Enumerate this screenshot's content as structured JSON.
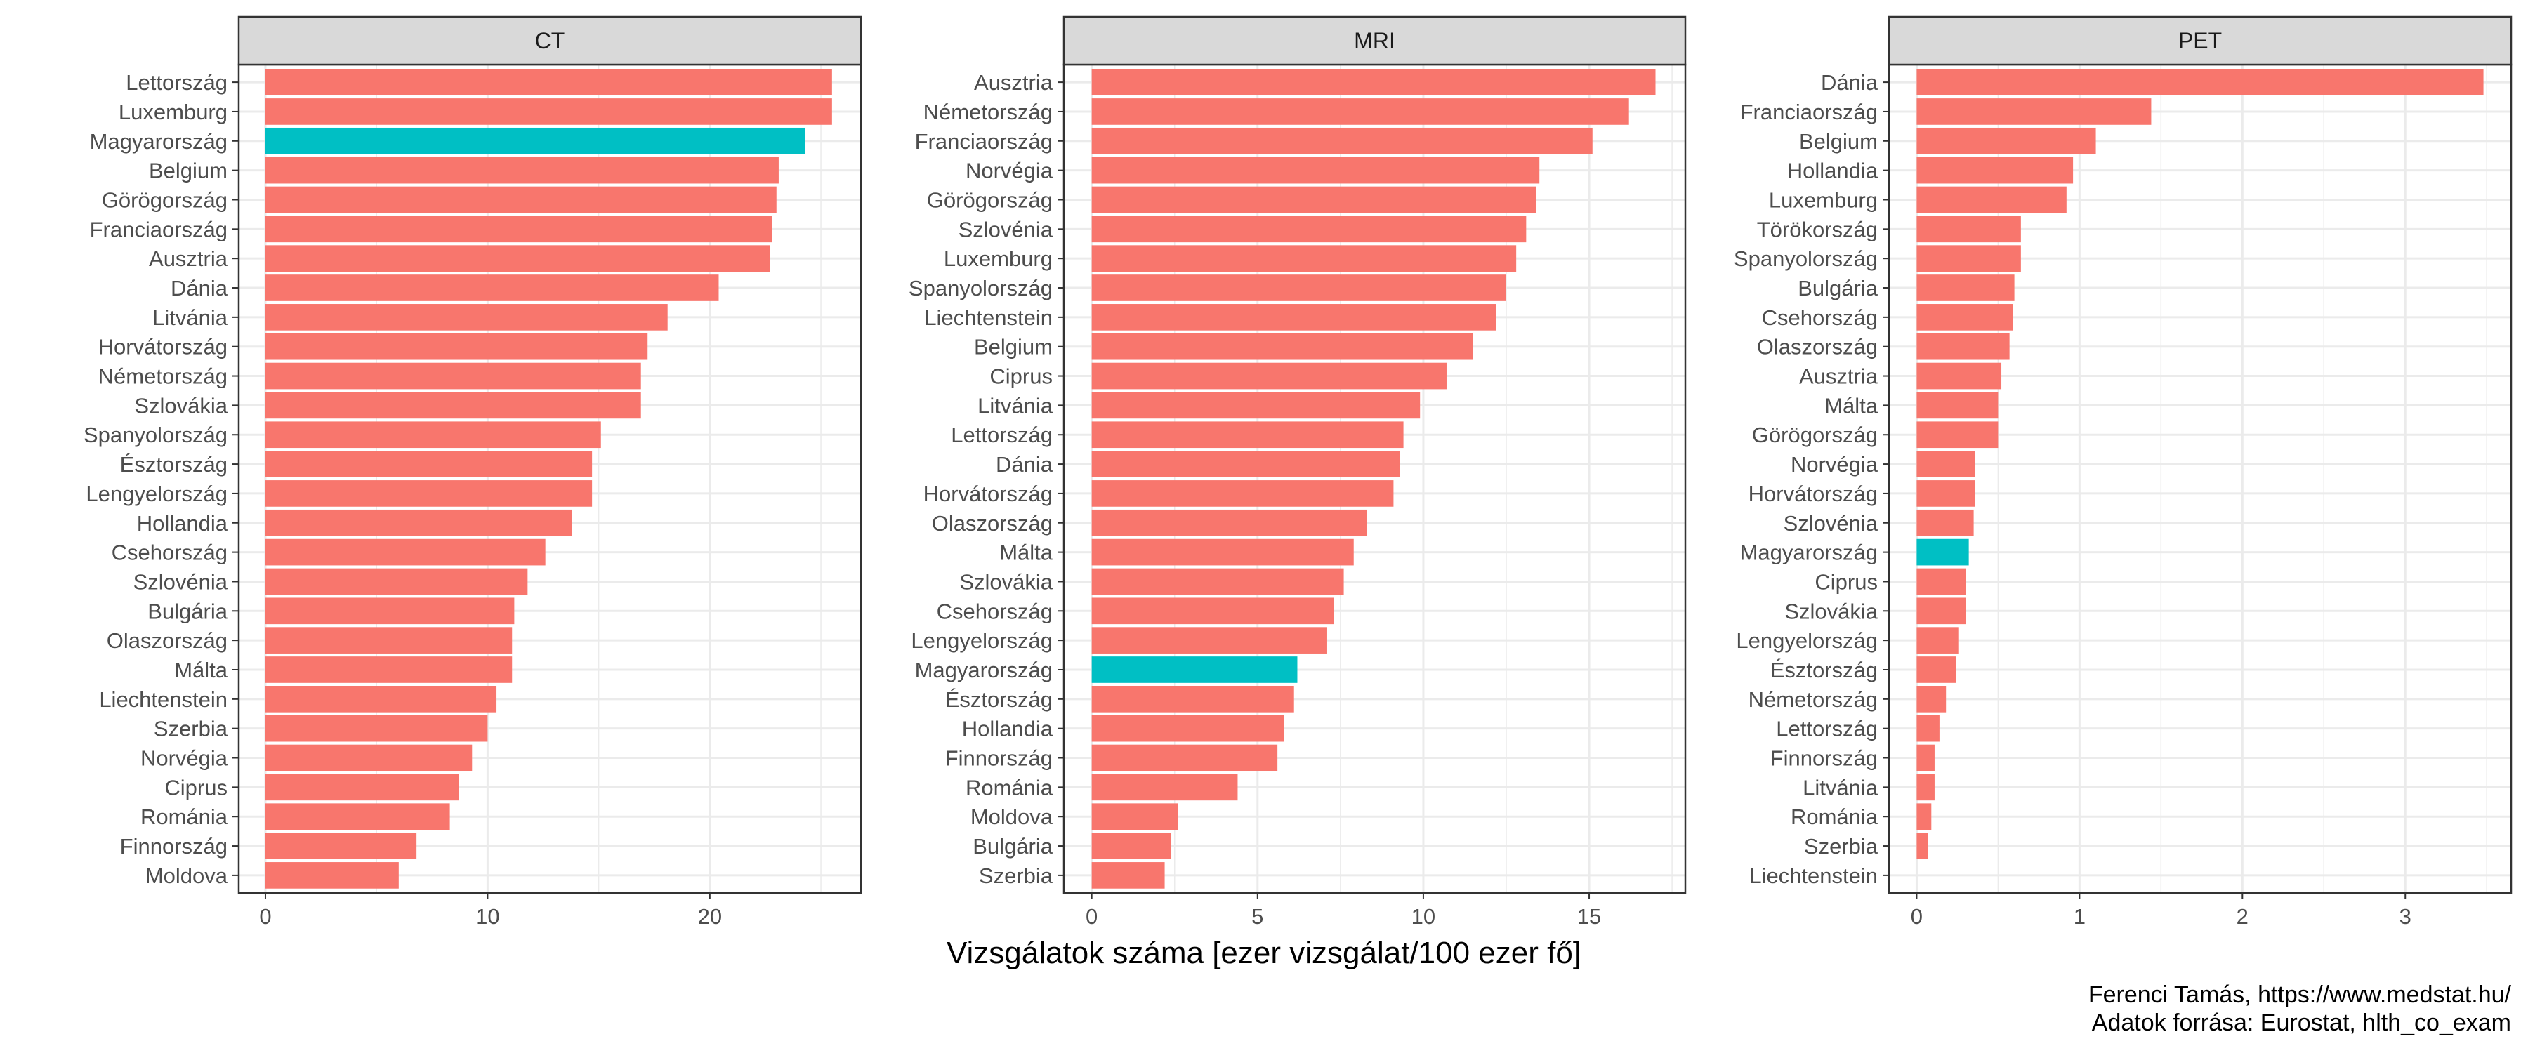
{
  "colors": {
    "bar_default": "#F8766D",
    "bar_highlight": "#00BFC4",
    "strip_fill": "#D9D9D9",
    "panel_border": "#333333",
    "grid": "#EBEBEB",
    "tick_text": "#4D4D4D"
  },
  "chart_data": {
    "type": "bar",
    "orientation": "horizontal",
    "xlabel": "Vizsgálatok száma [ezer vizsgálat/100 ezer fő]",
    "highlight": "Magyarország",
    "grid": true,
    "panels": [
      {
        "title": "CT",
        "xlim": [
          -1.2,
          26.8
        ],
        "ticks": [
          0,
          10,
          20
        ],
        "categories": [
          "Lettország",
          "Luxemburg",
          "Magyarország",
          "Belgium",
          "Görögország",
          "Franciaország",
          "Ausztria",
          "Dánia",
          "Litvánia",
          "Horvátország",
          "Németország",
          "Szlovákia",
          "Spanyolország",
          "Észtország",
          "Lengyelország",
          "Hollandia",
          "Csehország",
          "Szlovénia",
          "Bulgária",
          "Olaszország",
          "Málta",
          "Liechtenstein",
          "Szerbia",
          "Norvégia",
          "Ciprus",
          "Románia",
          "Finnország",
          "Moldova"
        ],
        "values": [
          25.5,
          25.5,
          24.3,
          23.1,
          23.0,
          22.8,
          22.7,
          20.4,
          18.1,
          17.2,
          16.9,
          16.9,
          15.1,
          14.7,
          14.7,
          13.8,
          12.6,
          11.8,
          11.2,
          11.1,
          11.1,
          10.4,
          10.0,
          9.3,
          8.7,
          8.3,
          6.8,
          6.0
        ]
      },
      {
        "title": "MRI",
        "xlim": [
          -0.84,
          17.9
        ],
        "ticks": [
          0,
          5,
          10,
          15
        ],
        "categories": [
          "Ausztria",
          "Németország",
          "Franciaország",
          "Norvégia",
          "Görögország",
          "Szlovénia",
          "Luxemburg",
          "Spanyolország",
          "Liechtenstein",
          "Belgium",
          "Ciprus",
          "Litvánia",
          "Lettország",
          "Dánia",
          "Horvátország",
          "Olaszország",
          "Málta",
          "Szlovákia",
          "Csehország",
          "Lengyelország",
          "Magyarország",
          "Észtország",
          "Hollandia",
          "Finnország",
          "Románia",
          "Moldova",
          "Bulgária",
          "Szerbia"
        ],
        "values": [
          17.0,
          16.2,
          15.1,
          13.5,
          13.4,
          13.1,
          12.8,
          12.5,
          12.2,
          11.5,
          10.7,
          9.9,
          9.4,
          9.3,
          9.1,
          8.3,
          7.9,
          7.6,
          7.3,
          7.1,
          6.2,
          6.1,
          5.8,
          5.6,
          4.4,
          2.6,
          2.4,
          2.2
        ]
      },
      {
        "title": "PET",
        "xlim": [
          -0.17,
          3.65
        ],
        "ticks": [
          0,
          1,
          2,
          3
        ],
        "categories": [
          "Dánia",
          "Franciaország",
          "Belgium",
          "Hollandia",
          "Luxemburg",
          "Törökország",
          "Spanyolország",
          "Bulgária",
          "Csehország",
          "Olaszország",
          "Ausztria",
          "Málta",
          "Görögország",
          "Norvégia",
          "Horvátország",
          "Szlovénia",
          "Magyarország",
          "Ciprus",
          "Szlovákia",
          "Lengyelország",
          "Észtország",
          "Németország",
          "Lettország",
          "Finnország",
          "Litvánia",
          "Románia",
          "Szerbia",
          "Liechtenstein"
        ],
        "values": [
          3.48,
          1.44,
          1.1,
          0.96,
          0.92,
          0.64,
          0.64,
          0.6,
          0.59,
          0.57,
          0.52,
          0.5,
          0.5,
          0.36,
          0.36,
          0.35,
          0.32,
          0.3,
          0.3,
          0.26,
          0.24,
          0.18,
          0.14,
          0.11,
          0.11,
          0.09,
          0.07,
          0.0
        ]
      }
    ]
  },
  "caption": {
    "line1": "Ferenci Tamás, https://www.medstat.hu/",
    "line2": "Adatok forrása: Eurostat, hlth_co_exam"
  }
}
